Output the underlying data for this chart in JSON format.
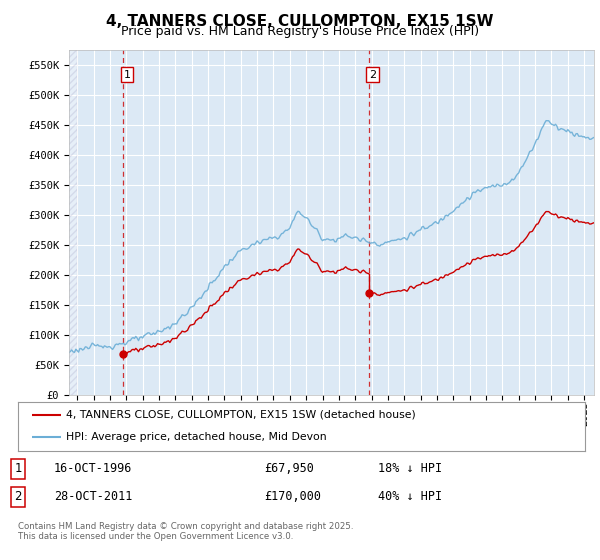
{
  "title": "4, TANNERS CLOSE, CULLOMPTON, EX15 1SW",
  "subtitle": "Price paid vs. HM Land Registry's House Price Index (HPI)",
  "ylim": [
    0,
    575000
  ],
  "yticks": [
    0,
    50000,
    100000,
    150000,
    200000,
    250000,
    300000,
    350000,
    400000,
    450000,
    500000,
    550000
  ],
  "ytick_labels": [
    "£0",
    "£50K",
    "£100K",
    "£150K",
    "£200K",
    "£250K",
    "£300K",
    "£350K",
    "£400K",
    "£450K",
    "£500K",
    "£550K"
  ],
  "xlim_start": 1993.5,
  "xlim_end": 2025.6,
  "background_color": "#ffffff",
  "plot_bg_color": "#dce9f5",
  "grid_color": "#ffffff",
  "hpi_color": "#6baed6",
  "price_color": "#cc0000",
  "sale1_date": 1996.79,
  "sale1_price": 67950,
  "sale1_label": "1",
  "sale2_date": 2011.82,
  "sale2_price": 170000,
  "sale2_label": "2",
  "legend_line1": "4, TANNERS CLOSE, CULLOMPTON, EX15 1SW (detached house)",
  "legend_line2": "HPI: Average price, detached house, Mid Devon",
  "footer": "Contains HM Land Registry data © Crown copyright and database right 2025.\nThis data is licensed under the Open Government Licence v3.0.",
  "title_fontsize": 11,
  "subtitle_fontsize": 9,
  "tick_fontsize": 7.5,
  "hpi_linewidth": 1.0,
  "price_linewidth": 1.0,
  "hpi_anchors_x": [
    1993.5,
    1994.0,
    1994.5,
    1995.0,
    1995.5,
    1996.0,
    1996.5,
    1997.0,
    1997.5,
    1998.0,
    1998.5,
    1999.0,
    1999.5,
    2000.0,
    2000.5,
    2001.0,
    2001.5,
    2002.0,
    2002.5,
    2003.0,
    2003.5,
    2004.0,
    2004.5,
    2005.0,
    2005.5,
    2006.0,
    2006.5,
    2007.0,
    2007.5,
    2008.0,
    2008.5,
    2009.0,
    2009.5,
    2010.0,
    2010.5,
    2011.0,
    2011.5,
    2012.0,
    2012.5,
    2013.0,
    2013.5,
    2014.0,
    2014.5,
    2015.0,
    2015.5,
    2016.0,
    2016.5,
    2017.0,
    2017.5,
    2018.0,
    2018.5,
    2019.0,
    2019.5,
    2020.0,
    2020.5,
    2021.0,
    2021.5,
    2022.0,
    2022.5,
    2022.8,
    2023.0,
    2023.5,
    2024.0,
    2024.5,
    2025.0,
    2025.5
  ],
  "hpi_anchors_y": [
    72000,
    75000,
    78000,
    80000,
    81000,
    82000,
    84000,
    88000,
    92000,
    96000,
    100000,
    105000,
    112000,
    120000,
    132000,
    145000,
    162000,
    178000,
    196000,
    213000,
    228000,
    240000,
    248000,
    252000,
    258000,
    262000,
    268000,
    278000,
    308000,
    295000,
    278000,
    262000,
    258000,
    262000,
    265000,
    262000,
    258000,
    255000,
    252000,
    255000,
    258000,
    262000,
    268000,
    275000,
    280000,
    288000,
    298000,
    310000,
    320000,
    330000,
    340000,
    345000,
    348000,
    350000,
    358000,
    370000,
    395000,
    420000,
    450000,
    460000,
    455000,
    445000,
    440000,
    435000,
    430000,
    430000
  ]
}
